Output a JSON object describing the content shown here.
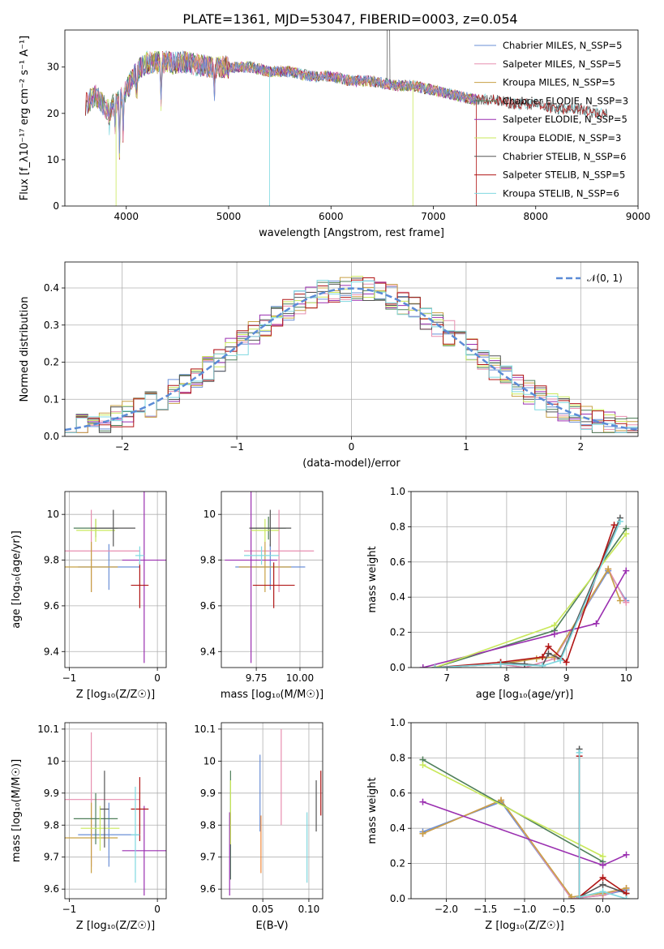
{
  "figure": {
    "title": "PLATE=1361, MJD=53047, FIBERID=0003, z=0.054"
  },
  "colors": {
    "Chabrier MILES": "#6a8fd6",
    "Salpeter MILES": "#e78fb0",
    "Kroupa MILES": "#c8a045",
    "Chabrier ELODIE": "#4f7f5a",
    "Salpeter ELODIE": "#9a2fb0",
    "Kroupa ELODIE": "#c9e85a",
    "Chabrier STELIB": "#555555",
    "Salpeter STELIB": "#b01515",
    "Kroupa STELIB": "#7fd8e0",
    "orange_extra": "#f08a3c",
    "normal_curve": "#5b8bd6"
  },
  "chart_data": [
    {
      "id": "spectrum",
      "type": "line",
      "xlabel": "wavelength [Angstrom, rest frame]",
      "ylabel": "Flux [f_λ10⁻¹⁷ erg cm⁻² s⁻¹ A⁻¹]",
      "xlim": [
        3400,
        9000
      ],
      "ylim": [
        0,
        38
      ],
      "xticks": [
        4000,
        5000,
        6000,
        7000,
        8000,
        9000
      ],
      "yticks": [
        0,
        10,
        20,
        30
      ],
      "legend_placement": "top-right",
      "legend": [
        "Chabrier MILES, N_SSP=5",
        "Salpeter MILES, N_SSP=5",
        "Kroupa MILES, N_SSP=5",
        "Chabrier ELODIE, N_SSP=3",
        "Salpeter ELODIE, N_SSP=5",
        "Kroupa ELODIE, N_SSP=3",
        "Chabrier STELIB, N_SSP=6",
        "Salpeter STELIB, N_SSP=5",
        "Kroupa STELIB, N_SSP=6"
      ],
      "continuum_x": [
        3600,
        3700,
        3800,
        3900,
        4000,
        4100,
        4200,
        4400,
        4600,
        4800,
        5000,
        5200,
        5400,
        5600,
        5800,
        6000,
        6200,
        6400,
        6600,
        6800,
        7000,
        7200,
        7400,
        7600,
        7800,
        8000,
        8200,
        8400,
        8600,
        8800
      ],
      "continuum_y": [
        22,
        24,
        21,
        22,
        25,
        29,
        31,
        31,
        31,
        30,
        30,
        30,
        29,
        29,
        28,
        28,
        27,
        27,
        26,
        26,
        25,
        24,
        23,
        23,
        22,
        22,
        21,
        21,
        20,
        20
      ]
    },
    {
      "id": "residuals",
      "type": "line",
      "xlabel": "(data-model)/error",
      "ylabel": "Normed distribution",
      "xlim": [
        -2.5,
        2.5
      ],
      "ylim": [
        0,
        0.47
      ],
      "xticks": [
        -2,
        -1,
        0,
        1,
        2
      ],
      "yticks": [
        0.0,
        0.1,
        0.2,
        0.3,
        0.4
      ],
      "grid": true,
      "legend": [
        "𝒩(0, 1)"
      ],
      "legend_placement": "top-right"
    },
    {
      "id": "age-vs-Z",
      "type": "scatter",
      "xlabel": "Z [log₁₀(Z/Z☉)]",
      "ylabel": "age  [log₁₀(age/yr)]",
      "xlim": [
        -1.05,
        0.1
      ],
      "ylim": [
        9.33,
        10.1
      ],
      "xticks": [
        -1,
        0
      ],
      "yticks": [
        9.4,
        9.6,
        9.8,
        10.0
      ],
      "grid": true,
      "points": [
        {
          "x": -0.55,
          "y": 9.77,
          "xerr": 0.35,
          "yerr": 0.1,
          "c": "Chabrier MILES"
        },
        {
          "x": -0.75,
          "y": 9.84,
          "xerr": 0.55,
          "yerr": 0.18,
          "c": "Salpeter MILES"
        },
        {
          "x": -0.75,
          "y": 9.77,
          "xerr": 0.3,
          "yerr": 0.11,
          "c": "Kroupa MILES"
        },
        {
          "x": -0.7,
          "y": 9.94,
          "xerr": 0.25,
          "yerr": 0.04,
          "c": "Chabrier ELODIE"
        },
        {
          "x": -0.15,
          "y": 9.8,
          "xerr": 0.25,
          "yerr": 0.45,
          "c": "Salpeter ELODIE"
        },
        {
          "x": -0.7,
          "y": 9.93,
          "xerr": 0.22,
          "yerr": 0.05,
          "c": "Kroupa ELODIE"
        },
        {
          "x": -0.5,
          "y": 9.94,
          "xerr": 0.25,
          "yerr": 0.08,
          "c": "Chabrier STELIB"
        },
        {
          "x": -0.2,
          "y": 9.69,
          "xerr": 0.1,
          "yerr": 0.1,
          "c": "Salpeter STELIB"
        },
        {
          "x": -0.2,
          "y": 9.82,
          "xerr": 0.05,
          "yerr": 0.04,
          "c": "Kroupa STELIB"
        }
      ]
    },
    {
      "id": "age-vs-mass",
      "type": "scatter",
      "xlabel": "mass [log₁₀(M/M☉)]",
      "xlim": [
        9.55,
        10.13
      ],
      "ylim": [
        9.33,
        10.1
      ],
      "xticks": [
        9.75,
        10.0
      ],
      "xtick_labels": [
        "9.75",
        "10.00"
      ],
      "yticks": [
        9.4,
        9.6,
        9.8,
        10.0
      ],
      "grid": true,
      "points": [
        {
          "x": 9.83,
          "y": 9.77,
          "xerr": 0.2,
          "yerr": 0.1,
          "c": "Chabrier MILES"
        },
        {
          "x": 9.88,
          "y": 9.84,
          "xerr": 0.2,
          "yerr": 0.18,
          "c": "Salpeter MILES"
        },
        {
          "x": 9.8,
          "y": 9.77,
          "xerr": 0.15,
          "yerr": 0.11,
          "c": "Kroupa MILES"
        },
        {
          "x": 9.82,
          "y": 9.94,
          "xerr": 0.1,
          "yerr": 0.05,
          "c": "Chabrier ELODIE"
        },
        {
          "x": 9.72,
          "y": 9.8,
          "xerr": 0.15,
          "yerr": 0.45,
          "c": "Salpeter ELODIE"
        },
        {
          "x": 9.8,
          "y": 9.93,
          "xerr": 0.08,
          "yerr": 0.05,
          "c": "Kroupa ELODIE"
        },
        {
          "x": 9.83,
          "y": 9.94,
          "xerr": 0.12,
          "yerr": 0.08,
          "c": "Chabrier STELIB"
        },
        {
          "x": 9.85,
          "y": 9.69,
          "xerr": 0.12,
          "yerr": 0.1,
          "c": "Salpeter STELIB"
        },
        {
          "x": 9.78,
          "y": 9.82,
          "xerr": 0.1,
          "yerr": 0.04,
          "c": "Kroupa STELIB"
        }
      ]
    },
    {
      "id": "massweight-vs-age",
      "type": "line",
      "xlabel": "age  [log₁₀(age/yr)]",
      "ylabel": "mass weight",
      "xlim": [
        6.4,
        10.2
      ],
      "ylim": [
        0,
        1
      ],
      "xticks": [
        7,
        8,
        9,
        10
      ],
      "yticks": [
        0.0,
        0.2,
        0.4,
        0.6,
        0.8,
        1.0
      ],
      "grid": true,
      "series": [
        {
          "c": "Chabrier MILES",
          "x": [
            6.8,
            7.9,
            8.3,
            8.8,
            9.7,
            10.0
          ],
          "y": [
            0.0,
            0.02,
            0.0,
            0.05,
            0.55,
            0.38
          ]
        },
        {
          "c": "Salpeter MILES",
          "x": [
            6.8,
            7.9,
            8.3,
            8.8,
            9.7,
            10.0
          ],
          "y": [
            0.0,
            0.02,
            0.0,
            0.05,
            0.56,
            0.37
          ]
        },
        {
          "c": "Kroupa MILES",
          "x": [
            6.8,
            7.9,
            8.5,
            8.8,
            9.7,
            9.9
          ],
          "y": [
            0.0,
            0.02,
            0.05,
            0.06,
            0.56,
            0.38
          ]
        },
        {
          "c": "Chabrier ELODIE",
          "x": [
            6.8,
            8.8,
            10.0
          ],
          "y": [
            0.0,
            0.21,
            0.79
          ]
        },
        {
          "c": "Salpeter ELODIE",
          "x": [
            6.6,
            8.8,
            9.5,
            10.0
          ],
          "y": [
            0.0,
            0.19,
            0.25,
            0.55
          ]
        },
        {
          "c": "Kroupa ELODIE",
          "x": [
            6.8,
            8.8,
            10.0
          ],
          "y": [
            0.0,
            0.24,
            0.76
          ]
        },
        {
          "c": "Chabrier STELIB",
          "x": [
            7.9,
            8.3,
            8.6,
            8.7,
            8.9,
            9.9
          ],
          "y": [
            0.03,
            0.02,
            0.01,
            0.08,
            0.05,
            0.85
          ]
        },
        {
          "c": "Salpeter STELIB",
          "x": [
            6.8,
            7.9,
            8.6,
            8.7,
            9.0,
            9.8
          ],
          "y": [
            0.0,
            0.03,
            0.06,
            0.12,
            0.03,
            0.81
          ]
        },
        {
          "c": "Kroupa STELIB",
          "x": [
            6.8,
            7.9,
            8.6,
            8.9,
            9.9
          ],
          "y": [
            0.0,
            0.02,
            0.01,
            0.04,
            0.83
          ]
        }
      ]
    },
    {
      "id": "mass-vs-Z",
      "type": "scatter",
      "xlabel": "Z [log₁₀(Z/Z☉)]",
      "ylabel": "mass [log₁₀(M/M☉)]",
      "xlim": [
        -1.05,
        0.1
      ],
      "ylim": [
        9.57,
        10.12
      ],
      "xticks": [
        -1,
        0
      ],
      "yticks": [
        9.6,
        9.7,
        9.8,
        9.9,
        10.0,
        10.1
      ],
      "grid": true,
      "points": [
        {
          "x": -0.55,
          "y": 9.77,
          "xerr": 0.35,
          "yerr": 0.1,
          "c": "Chabrier MILES"
        },
        {
          "x": -0.75,
          "y": 9.88,
          "xerr": 0.55,
          "yerr": 0.21,
          "c": "Salpeter MILES"
        },
        {
          "x": -0.75,
          "y": 9.76,
          "xerr": 0.3,
          "yerr": 0.11,
          "c": "Kroupa MILES"
        },
        {
          "x": -0.7,
          "y": 9.82,
          "xerr": 0.25,
          "yerr": 0.08,
          "c": "Chabrier ELODIE"
        },
        {
          "x": -0.15,
          "y": 9.72,
          "xerr": 0.25,
          "yerr": 0.14,
          "c": "Salpeter ELODIE"
        },
        {
          "x": -0.65,
          "y": 9.79,
          "xerr": 0.22,
          "yerr": 0.07,
          "c": "Kroupa ELODIE"
        },
        {
          "x": -0.6,
          "y": 9.85,
          "xerr": 0.05,
          "yerr": 0.12,
          "c": "Chabrier STELIB"
        },
        {
          "x": -0.2,
          "y": 9.85,
          "xerr": 0.1,
          "yerr": 0.1,
          "c": "Salpeter STELIB"
        },
        {
          "x": -0.25,
          "y": 9.77,
          "xerr": 0.05,
          "yerr": 0.15,
          "c": "Kroupa STELIB"
        }
      ]
    },
    {
      "id": "mass-vs-EBV",
      "type": "scatter",
      "xlabel": "E(B-V)",
      "xlim": [
        0.005,
        0.115
      ],
      "ylim": [
        9.57,
        10.12
      ],
      "xticks": [
        0.05,
        0.1
      ],
      "xtick_labels": [
        "0.05",
        "0.10"
      ],
      "yticks": [
        9.6,
        9.7,
        9.8,
        9.9,
        10.0,
        10.1
      ],
      "grid": true,
      "points": [
        {
          "x": 0.047,
          "y": 9.9,
          "yerr": 0.12,
          "c": "Chabrier MILES"
        },
        {
          "x": 0.07,
          "y": 9.95,
          "yerr": 0.15,
          "c": "Salpeter MILES"
        },
        {
          "x": 0.048,
          "y": 9.74,
          "yerr": 0.09,
          "c": "orange_extra"
        },
        {
          "x": 0.015,
          "y": 9.8,
          "yerr": 0.17,
          "c": "Chabrier ELODIE"
        },
        {
          "x": 0.014,
          "y": 9.71,
          "yerr": 0.13,
          "c": "Salpeter ELODIE"
        },
        {
          "x": 0.015,
          "y": 9.84,
          "yerr": 0.1,
          "c": "Kroupa ELODIE"
        },
        {
          "x": 0.108,
          "y": 9.86,
          "yerr": 0.08,
          "c": "Chabrier STELIB"
        },
        {
          "x": 0.113,
          "y": 9.9,
          "yerr": 0.07,
          "c": "Salpeter STELIB"
        },
        {
          "x": 0.098,
          "y": 9.73,
          "yerr": 0.11,
          "c": "Kroupa STELIB"
        }
      ]
    },
    {
      "id": "massweight-vs-Z",
      "type": "line",
      "xlabel": "Z [log₁₀(Z/Z☉)]",
      "ylabel": "mass weight",
      "xlim": [
        -2.45,
        0.45
      ],
      "ylim": [
        0,
        1
      ],
      "xticks": [
        -2.0,
        -1.5,
        -1.0,
        -0.5,
        0.0
      ],
      "xtick_labels": [
        "−2.0",
        "−1.5",
        "−1.0",
        "−0.5",
        "0.0"
      ],
      "yticks": [
        0.0,
        0.2,
        0.4,
        0.6,
        0.8,
        1.0
      ],
      "grid": true,
      "series": [
        {
          "c": "Chabrier MILES",
          "x": [
            -2.3,
            -1.3,
            -0.4,
            0.0,
            0.3
          ],
          "y": [
            0.38,
            0.55,
            0.0,
            0.02,
            0.05
          ]
        },
        {
          "c": "Salpeter MILES",
          "x": [
            -2.3,
            -1.3,
            -0.4,
            0.0,
            0.3
          ],
          "y": [
            0.37,
            0.56,
            0.0,
            0.02,
            0.06
          ]
        },
        {
          "c": "Kroupa MILES",
          "x": [
            -2.3,
            -1.3,
            -0.4,
            0.0,
            0.3
          ],
          "y": [
            0.37,
            0.56,
            0.01,
            0.03,
            0.06
          ]
        },
        {
          "c": "Chabrier ELODIE",
          "x": [
            -2.3,
            0.0
          ],
          "y": [
            0.79,
            0.21
          ]
        },
        {
          "c": "Salpeter ELODIE",
          "x": [
            -2.3,
            0.0,
            0.3
          ],
          "y": [
            0.55,
            0.19,
            0.25
          ]
        },
        {
          "c": "Kroupa ELODIE",
          "x": [
            -2.3,
            0.0
          ],
          "y": [
            0.76,
            0.24
          ]
        },
        {
          "c": "Chabrier STELIB",
          "x": [
            -0.3,
            -0.3,
            0.0,
            0.3
          ],
          "y": [
            0.85,
            0.01,
            0.08,
            0.03
          ]
        },
        {
          "c": "Salpeter STELIB",
          "x": [
            -0.3,
            -0.3,
            0.0,
            0.3
          ],
          "y": [
            0.81,
            0.01,
            0.12,
            0.03
          ]
        },
        {
          "c": "Kroupa STELIB",
          "x": [
            -0.3,
            -0.3,
            0.0,
            0.3
          ],
          "y": [
            0.83,
            0.01,
            0.04,
            0.0
          ]
        }
      ]
    }
  ]
}
